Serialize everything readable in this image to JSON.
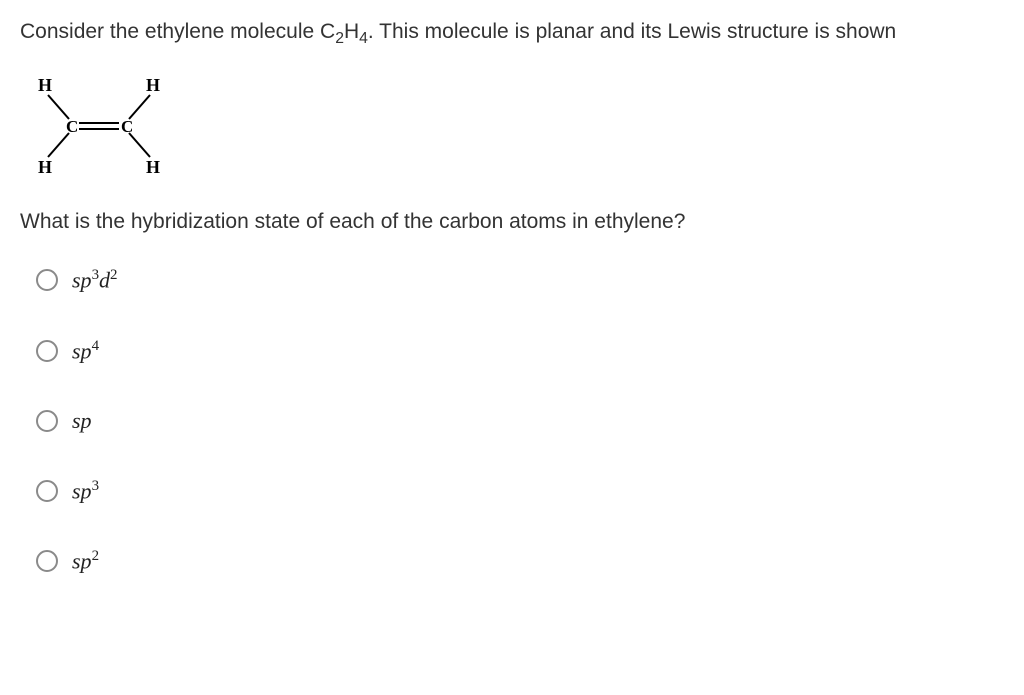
{
  "question": {
    "intro_html": "Consider the ethylene molecule C<sub>2</sub>H<sub>4</sub>. This molecule is planar and its Lewis structure is shown",
    "followup": "What is the hybridization state of each of the carbon atoms in ethylene?"
  },
  "lewis": {
    "atoms": {
      "H_tl": "H",
      "H_tr": "H",
      "H_bl": "H",
      "H_br": "H",
      "C_l": "C",
      "C_r": "C"
    },
    "colors": {
      "atom": "#000000",
      "bond": "#000000"
    }
  },
  "options": [
    {
      "id": "opt-sp3d2",
      "html": "sp<sup>3</sup>d<sup>2</sup>"
    },
    {
      "id": "opt-sp4",
      "html": "sp<sup>4</sup>"
    },
    {
      "id": "opt-sp",
      "html": "sp"
    },
    {
      "id": "opt-sp3",
      "html": "sp<sup>3</sup>"
    },
    {
      "id": "opt-sp2",
      "html": "sp<sup>2</sup>"
    }
  ]
}
